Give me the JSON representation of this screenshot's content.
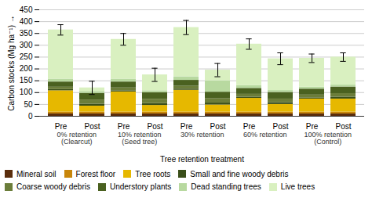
{
  "chart_data": {
    "type": "bar",
    "stacked": true,
    "categories": [
      "Pre",
      "Post",
      "Pre",
      "Post",
      "Pre",
      "Post",
      "Pre",
      "Post",
      "Pre",
      "Post"
    ],
    "group_labels": [
      "0% retention\n(Clearcut)",
      "10% retention\n(Seed tree)",
      "30% retention",
      "60% retention",
      "100% retention\n(Control)"
    ],
    "series": [
      {
        "name": "Mineral soil",
        "color": "#5a2d0c",
        "values": [
          10,
          10,
          10,
          10,
          10,
          10,
          10,
          10,
          10,
          10
        ]
      },
      {
        "name": "Forest floor",
        "color": "#c8860a",
        "values": [
          8,
          8,
          8,
          8,
          8,
          8,
          8,
          8,
          8,
          8
        ]
      },
      {
        "name": "Tree roots",
        "color": "#e6b800",
        "values": [
          90,
          25,
          85,
          28,
          92,
          30,
          58,
          32,
          55,
          55
        ]
      },
      {
        "name": "Small and fine woody debris",
        "color": "#3a4f1a",
        "values": [
          5,
          8,
          5,
          8,
          5,
          8,
          5,
          8,
          5,
          8
        ]
      },
      {
        "name": "Coarse woody debris",
        "color": "#6b7d3a",
        "values": [
          10,
          18,
          12,
          18,
          12,
          18,
          12,
          15,
          12,
          15
        ]
      },
      {
        "name": "Understory plants",
        "color": "#4a6120",
        "values": [
          22,
          28,
          25,
          28,
          25,
          28,
          25,
          28,
          25,
          28
        ]
      },
      {
        "name": "Dead standing trees",
        "color": "#b8d9a0",
        "values": [
          12,
          8,
          12,
          8,
          15,
          48,
          12,
          8,
          8,
          8
        ]
      },
      {
        "name": "Live trees",
        "color": "#d9f0c0",
        "values": [
          208,
          15,
          168,
          67,
          208,
          45,
          175,
          134,
          122,
          118
        ]
      }
    ],
    "errors": [
      22,
      28,
      25,
      28,
      30,
      28,
      22,
      25,
      18,
      18
    ],
    "ylim": [
      0,
      450
    ],
    "yticks": [
      0,
      50,
      100,
      150,
      200,
      250,
      300,
      350,
      400,
      450
    ],
    "ylabel": "Carbon stocks (Mg ha⁻¹)",
    "xlabel": "Tree retention treatment",
    "grid": true,
    "legend": "bottom"
  }
}
